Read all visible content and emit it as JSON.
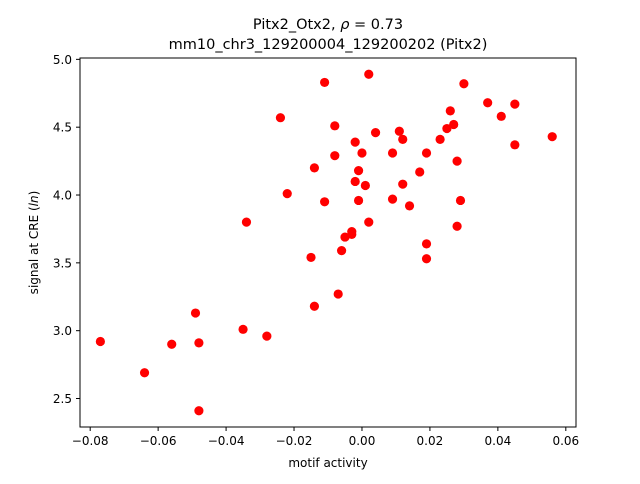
{
  "chart_data": {
    "type": "scatter",
    "title_line1": "Pitx2_Otx2, ",
    "title_rho": "ρ",
    "title_rho_value": " = 0.73",
    "title_line2": "mm10_chr3_129200004_129200202 (Pitx2)",
    "xlabel": "motif activity",
    "ylabel_prefix": "signal at CRE (",
    "ylabel_italic": "ln",
    "ylabel_suffix": ")",
    "xlim": [
      -0.083,
      0.063
    ],
    "ylim": [
      2.29,
      5.01
    ],
    "xticks": [
      -0.08,
      -0.06,
      -0.04,
      -0.02,
      0.0,
      0.02,
      0.04,
      0.06
    ],
    "xtick_labels": [
      "−0.08",
      "−0.06",
      "−0.04",
      "−0.02",
      "0.00",
      "0.02",
      "0.04",
      "0.06"
    ],
    "yticks": [
      2.5,
      3.0,
      3.5,
      4.0,
      4.5,
      5.0
    ],
    "ytick_labels": [
      "2.5",
      "3.0",
      "3.5",
      "4.0",
      "4.5",
      "5.0"
    ],
    "marker_color": "#ff0000",
    "grid": false,
    "legend": "none",
    "points": [
      [
        -0.077,
        2.92
      ],
      [
        -0.064,
        2.69
      ],
      [
        -0.056,
        2.9
      ],
      [
        -0.049,
        3.13
      ],
      [
        -0.048,
        2.91
      ],
      [
        -0.048,
        2.41
      ],
      [
        -0.035,
        3.01
      ],
      [
        -0.034,
        3.8
      ],
      [
        -0.028,
        2.96
      ],
      [
        -0.024,
        4.57
      ],
      [
        -0.022,
        4.01
      ],
      [
        -0.015,
        3.54
      ],
      [
        -0.014,
        4.2
      ],
      [
        -0.014,
        3.18
      ],
      [
        -0.011,
        3.95
      ],
      [
        -0.011,
        4.83
      ],
      [
        -0.008,
        4.51
      ],
      [
        -0.008,
        4.29
      ],
      [
        -0.007,
        3.27
      ],
      [
        -0.006,
        3.59
      ],
      [
        -0.005,
        3.69
      ],
      [
        -0.003,
        3.71
      ],
      [
        -0.003,
        3.73
      ],
      [
        -0.002,
        4.1
      ],
      [
        -0.002,
        4.39
      ],
      [
        -0.001,
        4.18
      ],
      [
        -0.001,
        3.96
      ],
      [
        0.0,
        4.31
      ],
      [
        0.001,
        4.07
      ],
      [
        0.002,
        3.8
      ],
      [
        0.002,
        4.89
      ],
      [
        0.004,
        4.46
      ],
      [
        0.009,
        4.31
      ],
      [
        0.009,
        3.97
      ],
      [
        0.011,
        4.47
      ],
      [
        0.012,
        4.41
      ],
      [
        0.012,
        4.08
      ],
      [
        0.014,
        3.92
      ],
      [
        0.017,
        4.17
      ],
      [
        0.019,
        4.31
      ],
      [
        0.019,
        3.53
      ],
      [
        0.019,
        3.64
      ],
      [
        0.023,
        4.41
      ],
      [
        0.025,
        4.49
      ],
      [
        0.026,
        4.62
      ],
      [
        0.027,
        4.52
      ],
      [
        0.028,
        4.25
      ],
      [
        0.028,
        3.77
      ],
      [
        0.029,
        3.96
      ],
      [
        0.03,
        4.82
      ],
      [
        0.037,
        4.68
      ],
      [
        0.041,
        4.58
      ],
      [
        0.045,
        4.67
      ],
      [
        0.045,
        4.37
      ],
      [
        0.056,
        4.43
      ]
    ]
  }
}
